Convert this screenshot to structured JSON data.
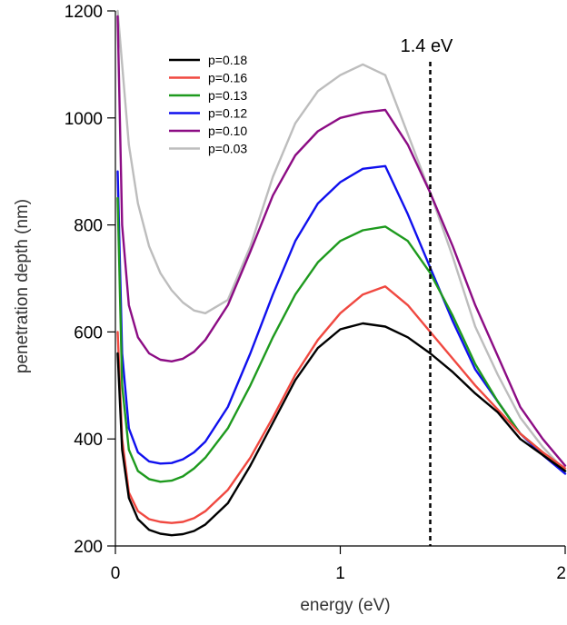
{
  "chart_data": {
    "type": "line",
    "title": "",
    "xlabel": "energy (eV)",
    "ylabel": "penetration depth (nm)",
    "xlim": [
      0,
      2
    ],
    "ylim": [
      200,
      1200
    ],
    "xticks": [
      0,
      1,
      2
    ],
    "yticks": [
      200,
      400,
      600,
      800,
      1000,
      1200
    ],
    "xtick_labels": [
      "0",
      "1",
      "2"
    ],
    "ytick_labels": [
      "200",
      "400",
      "600",
      "800",
      "1000",
      "1200"
    ],
    "grid": false,
    "legend_position": "top-left",
    "annotations": [
      {
        "text": "1.4 eV",
        "x": 1.4,
        "style": "dashed vertical line"
      }
    ],
    "series": [
      {
        "name": "p=0.18",
        "color": "#000000",
        "x": [
          0.01,
          0.03,
          0.06,
          0.1,
          0.15,
          0.2,
          0.25,
          0.3,
          0.35,
          0.4,
          0.5,
          0.6,
          0.7,
          0.8,
          0.9,
          1.0,
          1.1,
          1.2,
          1.3,
          1.4,
          1.5,
          1.6,
          1.7,
          1.8,
          1.9,
          2.0
        ],
        "y": [
          560,
          380,
          290,
          250,
          230,
          223,
          220,
          222,
          228,
          240,
          280,
          350,
          430,
          510,
          570,
          605,
          616,
          610,
          590,
          560,
          525,
          485,
          450,
          400,
          370,
          340
        ]
      },
      {
        "name": "p=0.16",
        "color": "#f04840",
        "x": [
          0.01,
          0.03,
          0.06,
          0.1,
          0.15,
          0.2,
          0.25,
          0.3,
          0.35,
          0.4,
          0.5,
          0.6,
          0.7,
          0.8,
          0.9,
          1.0,
          1.1,
          1.2,
          1.3,
          1.4,
          1.5,
          1.6,
          1.7,
          1.8,
          1.9,
          2.0
        ],
        "y": [
          600,
          400,
          300,
          265,
          250,
          245,
          243,
          245,
          252,
          265,
          305,
          365,
          440,
          520,
          585,
          635,
          670,
          685,
          650,
          600,
          550,
          500,
          455,
          410,
          375,
          345
        ]
      },
      {
        "name": "p=0.13",
        "color": "#1e9a1e",
        "x": [
          0.01,
          0.03,
          0.06,
          0.1,
          0.15,
          0.2,
          0.25,
          0.3,
          0.35,
          0.4,
          0.5,
          0.6,
          0.7,
          0.8,
          0.9,
          1.0,
          1.1,
          1.2,
          1.3,
          1.4,
          1.5,
          1.6,
          1.7,
          1.8,
          1.9,
          2.0
        ],
        "y": [
          850,
          500,
          380,
          340,
          325,
          320,
          322,
          330,
          345,
          365,
          420,
          500,
          590,
          670,
          730,
          770,
          790,
          797,
          770,
          710,
          630,
          540,
          470,
          410,
          375,
          340
        ]
      },
      {
        "name": "p=0.12",
        "color": "#1010ee",
        "x": [
          0.01,
          0.03,
          0.06,
          0.1,
          0.15,
          0.2,
          0.25,
          0.3,
          0.35,
          0.4,
          0.5,
          0.6,
          0.7,
          0.8,
          0.9,
          1.0,
          1.1,
          1.2,
          1.3,
          1.4,
          1.5,
          1.6,
          1.7,
          1.8,
          1.9,
          2.0
        ],
        "y": [
          900,
          560,
          420,
          375,
          358,
          354,
          355,
          362,
          375,
          395,
          460,
          560,
          670,
          770,
          840,
          880,
          905,
          910,
          820,
          720,
          620,
          530,
          470,
          410,
          370,
          335
        ]
      },
      {
        "name": "p=0.10",
        "color": "#8c0c84",
        "x": [
          0.01,
          0.03,
          0.06,
          0.1,
          0.15,
          0.2,
          0.25,
          0.3,
          0.35,
          0.4,
          0.5,
          0.6,
          0.7,
          0.8,
          0.9,
          1.0,
          1.1,
          1.2,
          1.3,
          1.4,
          1.5,
          1.6,
          1.7,
          1.8,
          1.9,
          2.0
        ],
        "y": [
          1190,
          800,
          650,
          590,
          560,
          548,
          545,
          550,
          563,
          585,
          650,
          750,
          855,
          930,
          975,
          1000,
          1010,
          1015,
          950,
          860,
          760,
          650,
          555,
          460,
          400,
          350
        ]
      },
      {
        "name": "p=0.03",
        "color": "#bdbdbd",
        "x": [
          0.01,
          0.03,
          0.06,
          0.1,
          0.15,
          0.2,
          0.25,
          0.3,
          0.35,
          0.4,
          0.5,
          0.6,
          0.7,
          0.8,
          0.9,
          1.0,
          1.1,
          1.2,
          1.3,
          1.4,
          1.5,
          1.6,
          1.7,
          1.8,
          1.9,
          2.0
        ],
        "y": [
          1200,
          1100,
          950,
          840,
          760,
          710,
          678,
          655,
          640,
          635,
          660,
          760,
          890,
          990,
          1050,
          1080,
          1100,
          1080,
          970,
          860,
          740,
          610,
          520,
          440,
          385,
          340
        ]
      }
    ]
  }
}
